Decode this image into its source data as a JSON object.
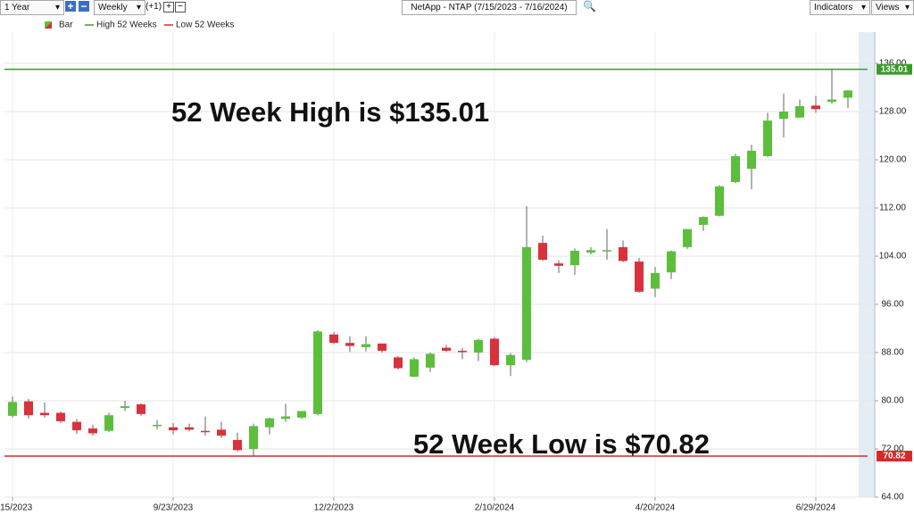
{
  "toolbar": {
    "range": "1 Year",
    "interval": "Weekly",
    "offset": "(+1)",
    "symbol": "NetApp - NTAP (7/15/2023 - 7/16/2024)",
    "indicators": "Indicators",
    "views": "Views"
  },
  "chart_data": {
    "type": "candlestick",
    "legend": {
      "bar": "Bar"
    },
    "categories": [
      "7/15/2023",
      null,
      null,
      null,
      null,
      null,
      null,
      null,
      null,
      null,
      "9/23/2023",
      null,
      null,
      null,
      null,
      null,
      null,
      null,
      null,
      null,
      "12/2/2023",
      null,
      null,
      null,
      null,
      null,
      null,
      null,
      null,
      null,
      "2/10/2024",
      null,
      null,
      null,
      null,
      null,
      null,
      null,
      null,
      null,
      "4/20/2024",
      null,
      null,
      null,
      null,
      null,
      null,
      null,
      null,
      null,
      "6/29/2024",
      null,
      null
    ],
    "open": [
      77.5,
      79.9,
      78.0,
      78.0,
      76.5,
      75.4,
      75.0,
      78.8,
      79.4,
      75.9,
      75.6,
      75.6,
      75.0,
      75.2,
      73.5,
      72.0,
      75.6,
      77.0,
      77.2,
      77.8,
      91.0,
      89.6,
      88.9,
      89.5,
      87.2,
      84.0,
      85.5,
      88.8,
      88.3,
      88.0,
      90.3,
      85.9,
      86.8,
      106.2,
      102.8,
      102.5,
      104.6,
      104.9,
      105.5,
      103.1,
      98.6,
      101.3,
      105.5,
      109.2,
      110.7,
      116.3,
      118.5,
      120.6,
      126.8,
      127.0,
      129.0,
      129.6,
      130.3
    ],
    "high": [
      80.7,
      80.3,
      79.7,
      78.2,
      77.0,
      76.0,
      78.0,
      80.0,
      79.6,
      76.8,
      76.3,
      76.2,
      77.4,
      76.5,
      74.7,
      76.2,
      77.2,
      79.5,
      78.3,
      91.7,
      91.4,
      90.7,
      90.7,
      89.5,
      87.4,
      87.2,
      88.0,
      89.3,
      88.8,
      90.3,
      90.6,
      87.9,
      112.3,
      107.4,
      103.3,
      105.3,
      105.5,
      108.5,
      106.6,
      103.7,
      102.2,
      104.9,
      108.5,
      110.6,
      115.8,
      121.0,
      122.5,
      127.8,
      131.0,
      130.0,
      130.6,
      135.01,
      131.6
    ],
    "low": [
      77.2,
      77.0,
      77.2,
      76.3,
      74.5,
      74.2,
      74.8,
      78.3,
      77.5,
      75.3,
      74.4,
      74.9,
      74.2,
      73.8,
      71.6,
      70.82,
      74.4,
      76.5,
      77.0,
      77.6,
      89.4,
      88.1,
      88.2,
      88.0,
      85.2,
      83.9,
      84.8,
      88.1,
      86.9,
      86.6,
      85.7,
      84.1,
      86.4,
      103.2,
      101.2,
      100.9,
      104.3,
      103.4,
      103.0,
      97.9,
      97.2,
      100.2,
      105.2,
      108.2,
      110.6,
      116.1,
      115.1,
      120.5,
      123.7,
      127.0,
      127.8,
      129.3,
      128.6
    ],
    "close": [
      79.8,
      77.6,
      77.6,
      76.6,
      75.1,
      74.6,
      77.6,
      79.1,
      77.8,
      76.0,
      75.1,
      75.2,
      74.8,
      74.2,
      71.8,
      75.8,
      77.1,
      77.4,
      78.3,
      91.5,
      89.6,
      89.1,
      89.4,
      88.3,
      85.4,
      86.9,
      87.8,
      88.3,
      88.2,
      90.1,
      85.9,
      87.6,
      105.5,
      103.4,
      102.4,
      104.9,
      105.0,
      105.0,
      103.2,
      98.1,
      101.2,
      104.8,
      108.5,
      110.5,
      115.6,
      120.6,
      121.5,
      126.5,
      128.0,
      128.9,
      128.4,
      130.0,
      131.5
    ],
    "up_color": "#5cbf3c",
    "down_color": "#d8323c",
    "reference_lines": [
      {
        "name": "High 52 Weeks",
        "value": 135.01,
        "color": "#3c9a2c"
      },
      {
        "name": "Low 52 Weeks",
        "value": 70.82,
        "color": "#d42a2a"
      }
    ],
    "annotations": [
      "52 Week High is $135.01",
      "52 Week Low is $70.82"
    ],
    "ylim": [
      64,
      141
    ],
    "yticks": [
      {
        "value": 64,
        "label": "64.00"
      },
      {
        "value": 72,
        "label": "72.00"
      },
      {
        "value": 80,
        "label": "80.00"
      },
      {
        "value": 88,
        "label": "88.00"
      },
      {
        "value": 96,
        "label": "96.00"
      },
      {
        "value": 104,
        "label": "104.00"
      },
      {
        "value": 112,
        "label": "112.00"
      },
      {
        "value": 120,
        "label": "120.00"
      },
      {
        "value": 128,
        "label": "128.00"
      },
      {
        "value": 136,
        "label": "136.00"
      }
    ],
    "grid": true
  }
}
